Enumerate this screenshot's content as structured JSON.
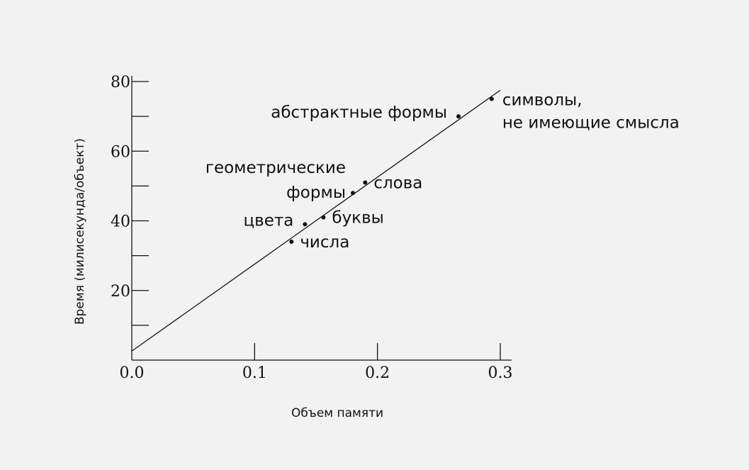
{
  "chart_data": {
    "type": "scatter",
    "title": "",
    "xlabel": "Объем памяти",
    "ylabel": "Время (милисекунда/объект)",
    "xlim": [
      0,
      0.3
    ],
    "ylim": [
      0,
      80
    ],
    "x_ticks": [
      {
        "value": 0,
        "label": "0.0"
      },
      {
        "value": 0.1,
        "label": "0.1"
      },
      {
        "value": 0.2,
        "label": "0.2"
      },
      {
        "value": 0.3,
        "label": "0.3"
      }
    ],
    "y_ticks": [
      {
        "value": 20,
        "label": "20"
      },
      {
        "value": 40,
        "label": "40"
      },
      {
        "value": 60,
        "label": "60"
      },
      {
        "value": 80,
        "label": "80"
      }
    ],
    "y_minor_ticks": [
      10,
      30,
      50,
      70
    ],
    "grid": false,
    "legend": "none",
    "points": [
      {
        "label": "числа",
        "x": 0.13,
        "y": 34,
        "label_pos": "right"
      },
      {
        "label": "цвета",
        "x": 0.141,
        "y": 39,
        "label_pos": "left"
      },
      {
        "label": "буквы",
        "x": 0.156,
        "y": 41,
        "label_pos": "right"
      },
      {
        "label_lines": [
          "геометрические",
          "формы"
        ],
        "x": 0.18,
        "y": 48,
        "label_pos": "left-multiline"
      },
      {
        "label": "слова",
        "x": 0.19,
        "y": 51,
        "label_pos": "right"
      },
      {
        "label": "абстрактные формы",
        "x": 0.266,
        "y": 70,
        "label_pos": "left"
      },
      {
        "label_lines": [
          "символы,",
          "не имеющие смысла"
        ],
        "x": 0.293,
        "y": 75,
        "label_pos": "right-multiline"
      }
    ],
    "fit_line": {
      "x": [
        0,
        0.3
      ],
      "y": [
        2.6,
        77.5
      ]
    }
  }
}
